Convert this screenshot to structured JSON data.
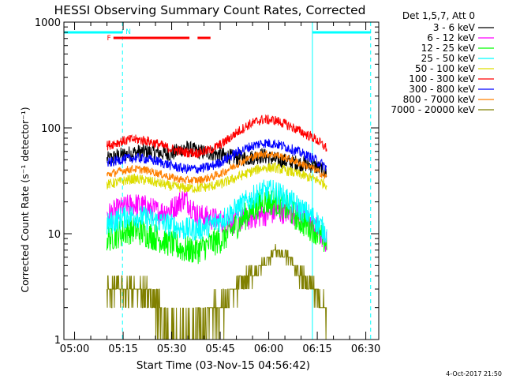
{
  "chart_data": {
    "type": "line",
    "title": "HESSI Observing Summary Count Rates, Corrected",
    "ylabel": "Corrected Count Rate (s⁻¹ detector⁻¹)",
    "xlabel": "Start Time (03-Nov-15 04:56:42)",
    "yscale": "log",
    "ylim": [
      1,
      1000
    ],
    "xlim": [
      "04:56:42",
      "06:34:00"
    ],
    "x_ticks": [
      "05:00",
      "05:15",
      "05:30",
      "05:45",
      "06:00",
      "06:15",
      "06:30"
    ],
    "y_ticks": [
      "1",
      "10",
      "100",
      "1000"
    ],
    "legend_title": "Det 1,5,7, Att 0",
    "legend_position": "right",
    "timestamp": "4-Oct-2017 21:50",
    "x_unit_note": "x values in minutes after 05:00",
    "series": [
      {
        "name": "3 - 6 keV",
        "color": "#000000",
        "noise": 0.08,
        "x": [
          10,
          14,
          18,
          22,
          26,
          30,
          34,
          38,
          42,
          46,
          50,
          54,
          58,
          62,
          66,
          70,
          74,
          78
        ],
        "values": [
          50,
          55,
          58,
          60,
          58,
          57,
          65,
          60,
          58,
          55,
          52,
          52,
          55,
          50,
          48,
          46,
          44,
          38
        ]
      },
      {
        "name": "6 - 12 keV",
        "color": "#ff00ff",
        "noise": 0.12,
        "x": [
          10,
          14,
          18,
          22,
          26,
          30,
          34,
          38,
          42,
          46,
          50,
          54,
          58,
          62,
          66,
          70,
          74,
          78
        ],
        "values": [
          15,
          17,
          19,
          18,
          16,
          17,
          22,
          15,
          14,
          13,
          13,
          14,
          15,
          16,
          16,
          15,
          12,
          8
        ]
      },
      {
        "name": "12 - 25 keV",
        "color": "#00ff00",
        "noise": 0.14,
        "x": [
          10,
          14,
          18,
          22,
          26,
          30,
          34,
          38,
          42,
          46,
          50,
          54,
          58,
          62,
          66,
          70,
          74,
          78
        ],
        "values": [
          9,
          10,
          11,
          10,
          9,
          8,
          7,
          7,
          8,
          9,
          12,
          16,
          20,
          20,
          17,
          13,
          11,
          8
        ]
      },
      {
        "name": "25 - 50 keV",
        "color": "#00ffff",
        "noise": 0.12,
        "x": [
          10,
          14,
          18,
          22,
          26,
          30,
          34,
          38,
          42,
          46,
          50,
          54,
          58,
          62,
          66,
          70,
          74,
          78
        ],
        "values": [
          12,
          14,
          15,
          14,
          13,
          12,
          11,
          11,
          12,
          14,
          17,
          21,
          25,
          25,
          21,
          17,
          14,
          10
        ]
      },
      {
        "name": "50 - 100 keV",
        "color": "#dddd00",
        "noise": 0.05,
        "x": [
          10,
          14,
          18,
          22,
          26,
          30,
          34,
          38,
          42,
          46,
          50,
          54,
          58,
          62,
          66,
          70,
          74,
          78
        ],
        "values": [
          29,
          31,
          33,
          32,
          30,
          28,
          27,
          27,
          28,
          30,
          34,
          38,
          42,
          42,
          39,
          36,
          33,
          29
        ]
      },
      {
        "name": "100 - 300 keV",
        "color": "#ff0000",
        "noise": 0.05,
        "x": [
          10,
          14,
          18,
          22,
          26,
          30,
          34,
          38,
          42,
          46,
          50,
          54,
          58,
          62,
          66,
          70,
          74,
          78
        ],
        "values": [
          68,
          74,
          78,
          76,
          70,
          63,
          59,
          58,
          62,
          72,
          90,
          108,
          120,
          118,
          106,
          92,
          80,
          64
        ]
      },
      {
        "name": "300 - 800 keV",
        "color": "#0000ff",
        "noise": 0.05,
        "x": [
          10,
          14,
          18,
          22,
          26,
          30,
          34,
          38,
          42,
          46,
          50,
          54,
          58,
          62,
          66,
          70,
          74,
          78
        ],
        "values": [
          46,
          50,
          52,
          51,
          48,
          44,
          41,
          41,
          43,
          49,
          58,
          66,
          72,
          71,
          65,
          58,
          51,
          42
        ]
      },
      {
        "name": "800 - 7000 keV",
        "color": "#ff8000",
        "noise": 0.04,
        "x": [
          10,
          14,
          18,
          22,
          26,
          30,
          34,
          38,
          42,
          46,
          50,
          54,
          58,
          62,
          66,
          70,
          74,
          78
        ],
        "values": [
          36,
          39,
          41,
          40,
          37,
          34,
          32,
          32,
          34,
          38,
          45,
          52,
          57,
          56,
          51,
          46,
          41,
          34
        ]
      },
      {
        "name": "7000 - 20000 keV",
        "color": "#808000",
        "noise": 0.0,
        "step": true,
        "x": [
          10,
          14,
          18,
          22,
          26,
          30,
          34,
          38,
          42,
          46,
          50,
          54,
          58,
          62,
          66,
          70,
          74,
          78
        ],
        "values": [
          3,
          3,
          3,
          3,
          2,
          1,
          1,
          1,
          2,
          2,
          3,
          4,
          5,
          7,
          6,
          4,
          3,
          2
        ]
      }
    ],
    "annotations": {
      "flags": [
        {
          "label": "F",
          "color": "#ff0000",
          "x": 10
        },
        {
          "label": "N",
          "color": "#00ffff",
          "x": 14.8
        }
      ],
      "eclipse_bars": [
        {
          "color": "#00ffff",
          "x_start": -3.3,
          "x_end": 14.8
        },
        {
          "color": "#00ffff",
          "x_start": 73.5,
          "x_end": 91.5
        }
      ],
      "flare_bars": [
        {
          "color": "#ff0000",
          "x_start": 12,
          "x_end": 35.5
        },
        {
          "color": "#ff0000",
          "x_start": 38,
          "x_end": 42
        }
      ],
      "vertical_lines": [
        {
          "color": "#00ffff",
          "x": -3.3,
          "style": "solid"
        },
        {
          "color": "#00ffff",
          "x": 14.8,
          "style": "dashed"
        },
        {
          "color": "#00ffff",
          "x": 73.5,
          "style": "solid"
        },
        {
          "color": "#00ffff",
          "x": 91.5,
          "style": "dashed"
        }
      ]
    }
  }
}
